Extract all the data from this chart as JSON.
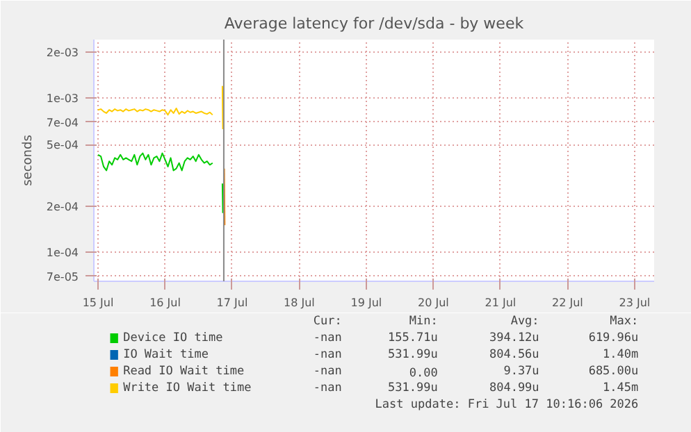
{
  "chart_data": {
    "type": "line",
    "title": "Average latency for /dev/sda - by week",
    "ylabel": "seconds",
    "x": [
      "2026-07-15T00:00",
      "2026-07-15T01:00",
      "2026-07-15T02:00",
      "2026-07-15T03:00",
      "2026-07-15T04:00",
      "2026-07-15T05:00",
      "2026-07-15T06:00",
      "2026-07-15T07:00",
      "2026-07-15T08:00",
      "2026-07-15T09:00",
      "2026-07-15T10:00",
      "2026-07-15T11:00",
      "2026-07-15T12:00",
      "2026-07-15T13:00",
      "2026-07-15T14:00",
      "2026-07-15T15:00",
      "2026-07-15T16:00",
      "2026-07-15T17:00",
      "2026-07-15T18:00",
      "2026-07-15T19:00",
      "2026-07-15T20:00",
      "2026-07-15T21:00",
      "2026-07-15T22:00",
      "2026-07-15T23:00",
      "2026-07-16T00:00",
      "2026-07-16T01:00",
      "2026-07-16T02:00",
      "2026-07-16T03:00",
      "2026-07-16T04:00",
      "2026-07-16T05:00",
      "2026-07-16T06:00",
      "2026-07-16T07:00",
      "2026-07-16T08:00",
      "2026-07-16T09:00",
      "2026-07-16T10:00",
      "2026-07-16T11:00",
      "2026-07-16T12:00",
      "2026-07-16T13:00",
      "2026-07-16T14:00",
      "2026-07-16T15:00",
      "2026-07-16T16:00",
      "2026-07-16T17:00",
      "2026-07-16T19:00",
      "2026-07-16T20:30",
      "2026-07-16T20:40"
    ],
    "series": [
      {
        "name": "Device IO time",
        "color": "#00cc00",
        "values": [
          0.00043,
          0.00042,
          0.00036,
          0.00034,
          0.00039,
          0.00037,
          0.00041,
          0.0004,
          0.00043,
          0.0004,
          0.00041,
          0.0004,
          0.00039,
          0.00043,
          0.00037,
          0.00042,
          0.00044,
          0.0004,
          0.00043,
          0.00037,
          0.00041,
          0.00042,
          0.00039,
          0.00044,
          0.0004,
          0.00036,
          0.00041,
          0.00034,
          0.00035,
          0.00038,
          0.00034,
          0.00039,
          0.00041,
          0.0004,
          0.00042,
          0.00039,
          0.00043,
          0.0004,
          0.00038,
          0.00039,
          0.00037,
          0.00038,
          null,
          0.00028,
          0.00018
        ]
      },
      {
        "name": "IO Wait time",
        "color": "#0066b3",
        "values": [
          null,
          null,
          null,
          null,
          null,
          null,
          null,
          null,
          null,
          null,
          null,
          null,
          null,
          null,
          null,
          null,
          null,
          null,
          null,
          null,
          null,
          null,
          null,
          null,
          null,
          null,
          null,
          null,
          null,
          null,
          null,
          null,
          null,
          null,
          null,
          null,
          null,
          null,
          null,
          null,
          null,
          null,
          null,
          null,
          null
        ]
      },
      {
        "name": "Read IO Wait time",
        "color": "#ff8000",
        "x": [
          "2026-07-16T21:10",
          "2026-07-16T21:20"
        ],
        "values": [
          0.00035,
          0.00015
        ]
      },
      {
        "name": "Write IO Wait time",
        "color": "#ffcc00",
        "values": [
          0.00084,
          0.00085,
          0.00082,
          0.0008,
          0.00084,
          0.00082,
          0.00085,
          0.00083,
          0.00084,
          0.00082,
          0.00085,
          0.00083,
          0.00084,
          0.00085,
          0.00082,
          0.00084,
          0.00083,
          0.00085,
          0.00084,
          0.00082,
          0.00084,
          0.00083,
          0.00082,
          0.00084,
          0.00083,
          0.00078,
          0.00084,
          0.0008,
          0.00086,
          0.00079,
          0.00082,
          0.0008,
          0.00083,
          0.00081,
          0.00082,
          0.0008,
          0.00081,
          0.00082,
          0.0008,
          0.00079,
          0.00081,
          0.00078,
          null,
          0.0012,
          0.00063
        ]
      }
    ],
    "xlim": [
      "2026-07-14T22:30",
      "2026-07-23T07:00"
    ],
    "xticks": [
      {
        "value": "2026-07-15",
        "label": "15 Jul"
      },
      {
        "value": "2026-07-16",
        "label": "16 Jul"
      },
      {
        "value": "2026-07-17",
        "label": "17 Jul"
      },
      {
        "value": "2026-07-18",
        "label": "18 Jul"
      },
      {
        "value": "2026-07-19",
        "label": "19 Jul"
      },
      {
        "value": "2026-07-20",
        "label": "20 Jul"
      },
      {
        "value": "2026-07-21",
        "label": "21 Jul"
      },
      {
        "value": "2026-07-22",
        "label": "22 Jul"
      },
      {
        "value": "2026-07-23",
        "label": "23 Jul"
      }
    ],
    "log": "y",
    "ylim": [
      6.5e-05,
      0.0024
    ],
    "yticks": [
      {
        "value": 0.002,
        "label": "2e-03"
      },
      {
        "value": 0.001,
        "label": "1e-03"
      },
      {
        "value": 0.0007,
        "label": "7e-04"
      },
      {
        "value": 0.0005,
        "label": "5e-04"
      },
      {
        "value": 0.0002,
        "label": "2e-04"
      },
      {
        "value": 0.0001,
        "label": "1e-04"
      },
      {
        "value": 7e-05,
        "label": "7e-05"
      }
    ],
    "grid": true,
    "legend": "bottom",
    "ref_lines": [
      {
        "axis": "x",
        "value": "2026-07-16T21:00",
        "label": null,
        "color": "#888888"
      }
    ],
    "annotations": [
      "Cur:",
      "Min:",
      "Avg:",
      "Max:",
      "-nan",
      "155.71u",
      "394.12u",
      "619.96u",
      "-nan",
      "531.99u",
      "804.56u",
      "1.40m",
      "-nan",
      "0.00",
      "9.37u",
      "685.00u",
      "-nan",
      "531.99u",
      "804.99u",
      "1.45m",
      "Last update: Fri Jul 17 10:16:06 2026"
    ]
  }
}
